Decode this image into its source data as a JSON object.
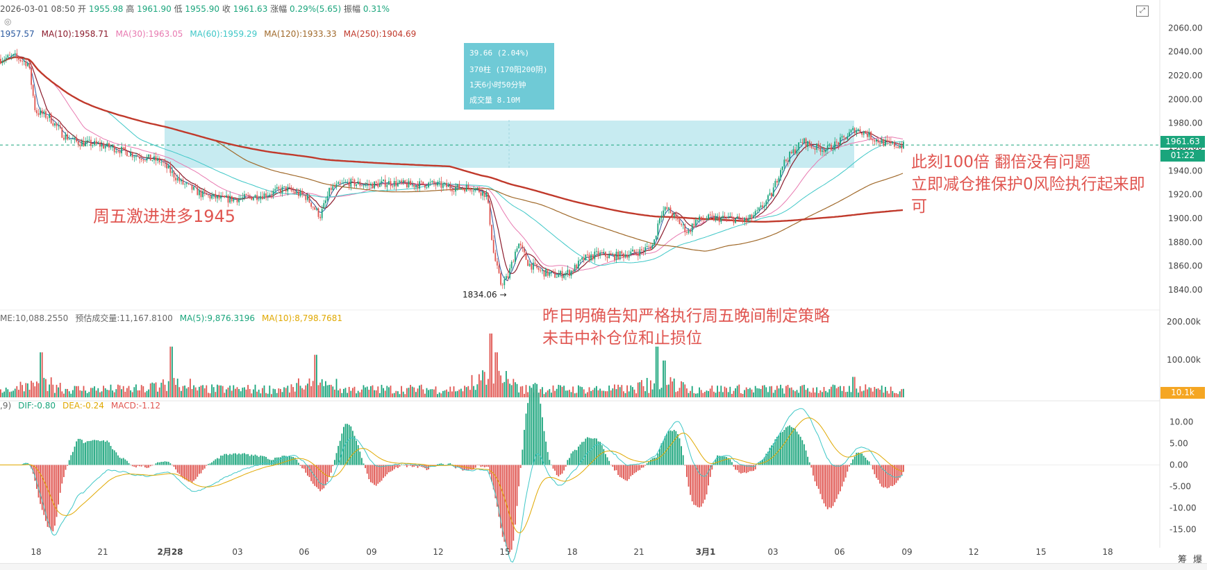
{
  "header": {
    "datetime": "2026-03-01 08:50",
    "open_label": "开",
    "open": "1955.98",
    "high_label": "高",
    "high": "1961.90",
    "low_label": "低",
    "low": "1955.90",
    "close_label": "收",
    "close": "1961.63",
    "change_label": "涨幅",
    "change": "0.29%(5.65)",
    "amplitude_label": "振幅",
    "amplitude": "0.31%"
  },
  "ma_legend": [
    {
      "text": "1957.57",
      "color": "#2c5aa0"
    },
    {
      "text": "MA(10):1958.71",
      "color": "#8b1a2b"
    },
    {
      "text": "MA(30):1963.05",
      "color": "#e879b0"
    },
    {
      "text": "MA(60):1959.29",
      "color": "#3ec7c7"
    },
    {
      "text": "MA(120):1933.33",
      "color": "#a0692a"
    },
    {
      "text": "MA(250):1904.69",
      "color": "#c0392b"
    }
  ],
  "vol_legend": [
    {
      "text": "ME:10,088.2550",
      "color": "#666666"
    },
    {
      "text": "预估成交量:11,167.8100",
      "color": "#666666"
    },
    {
      "text": "MA(5):9,876.3196",
      "color": "#1aa57c"
    },
    {
      "text": "MA(10):8,798.7681",
      "color": "#e0a800"
    }
  ],
  "macd_legend": [
    {
      "text": ",9)",
      "color": "#666666"
    },
    {
      "text": "DIF:-0.80",
      "color": "#1aa57c"
    },
    {
      "text": "DEA:-0.24",
      "color": "#e0a800"
    },
    {
      "text": "MACD:-1.12",
      "color": "#e05550"
    }
  ],
  "annotations": {
    "note_friday": "周五激进进多1945",
    "note_yesterday_1": "昨日明确告知严格执行周五晚间制定策略",
    "note_yesterday_2": "未击中补仓位和止损位",
    "note_now_1": "此刻100倍 翻倍没有问题",
    "note_now_2": "立即减仓推保护0风险执行起来即",
    "note_now_3": "可"
  },
  "measure_tooltip": {
    "line1": "39.66 (2.04%)",
    "line2": "370柱 (170阳200阴)",
    "line3": "1天6小时50分钟",
    "line4": "成交量 8.10M"
  },
  "low_label": "1834.06",
  "price_tags": {
    "last_price": "1961.63",
    "countdown": "01:22",
    "volume": "10.1k"
  },
  "bottom_right": {
    "label1": "筹",
    "label2": "爆"
  },
  "colors": {
    "up": "#1aa57c",
    "down": "#e05550",
    "box": "#bde7ee",
    "tag": "#1aa57c",
    "vol_tag": "#f5a623"
  },
  "chart_data": {
    "type": "candlestick",
    "symbol_timeframe": "",
    "price_axis": {
      "ticks": [
        2060,
        2040,
        2020,
        2000,
        1980,
        1960,
        1940,
        1920,
        1900,
        1880,
        1860,
        1840
      ],
      "range": [
        1826,
        2066
      ]
    },
    "volume_axis": {
      "ticks": [
        "200.00k",
        "100.00k"
      ]
    },
    "macd_axis": {
      "ticks": [
        10,
        5,
        0,
        -5,
        -10,
        -15
      ],
      "range": [
        -18,
        13
      ]
    },
    "x_axis": {
      "ticks": [
        "18",
        "21",
        "2月28",
        "03",
        "06",
        "09",
        "12",
        "15",
        "18",
        "21",
        "3月1",
        "03",
        "06",
        "09",
        "12",
        "15",
        "18"
      ]
    },
    "price_path": [
      [
        0,
        2034
      ],
      [
        20,
        2036
      ],
      [
        40,
        2030
      ],
      [
        50,
        1990
      ],
      [
        70,
        1985
      ],
      [
        90,
        1970
      ],
      [
        110,
        1964
      ],
      [
        140,
        1962
      ],
      [
        170,
        1958
      ],
      [
        200,
        1952
      ],
      [
        230,
        1948
      ],
      [
        260,
        1930
      ],
      [
        290,
        1920
      ],
      [
        320,
        1916
      ],
      [
        350,
        1917
      ],
      [
        380,
        1920
      ],
      [
        410,
        1925
      ],
      [
        440,
        1918
      ],
      [
        460,
        1902
      ],
      [
        475,
        1925
      ],
      [
        500,
        1930
      ],
      [
        530,
        1928
      ],
      [
        560,
        1930
      ],
      [
        590,
        1928
      ],
      [
        620,
        1929
      ],
      [
        650,
        1926
      ],
      [
        680,
        1926
      ],
      [
        700,
        1920
      ],
      [
        710,
        1870
      ],
      [
        720,
        1845
      ],
      [
        730,
        1850
      ],
      [
        745,
        1880
      ],
      [
        760,
        1862
      ],
      [
        780,
        1855
      ],
      [
        800,
        1852
      ],
      [
        820,
        1855
      ],
      [
        840,
        1866
      ],
      [
        860,
        1870
      ],
      [
        880,
        1868
      ],
      [
        920,
        1872
      ],
      [
        940,
        1878
      ],
      [
        950,
        1905
      ],
      [
        960,
        1908
      ],
      [
        975,
        1898
      ],
      [
        990,
        1888
      ],
      [
        1000,
        1898
      ],
      [
        1020,
        1900
      ],
      [
        1050,
        1900
      ],
      [
        1075,
        1898
      ],
      [
        1090,
        1905
      ],
      [
        1110,
        1920
      ],
      [
        1125,
        1945
      ],
      [
        1140,
        1955
      ],
      [
        1155,
        1965
      ],
      [
        1170,
        1960
      ],
      [
        1190,
        1958
      ],
      [
        1210,
        1965
      ],
      [
        1230,
        1975
      ],
      [
        1245,
        1972
      ],
      [
        1260,
        1966
      ],
      [
        1280,
        1962
      ],
      [
        1300,
        1961
      ],
      [
        1300,
        1961.63
      ]
    ],
    "measure_box": {
      "from_price": 1942.5,
      "to_price": 1982.2,
      "change": 39.66,
      "change_pct": 2.04
    },
    "levels": {
      "last_price": 1961.63,
      "low": 1834.06
    }
  }
}
